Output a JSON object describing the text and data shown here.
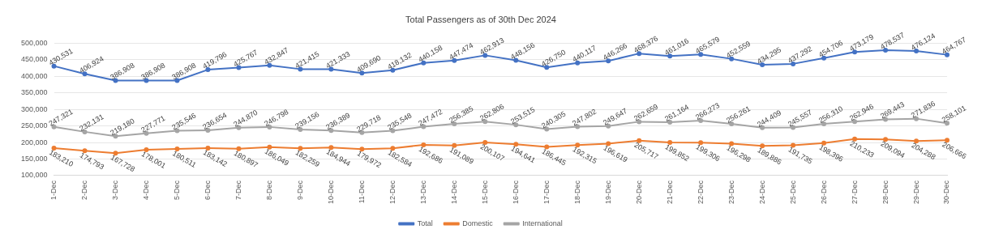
{
  "chart_data": {
    "type": "line",
    "title": "Total Passengers as of 30th Dec 2024",
    "categories": [
      "1-Dec",
      "2-Dec",
      "3-Dec",
      "4-Dec",
      "5-Dec",
      "6-Dec",
      "7-Dec",
      "8-Dec",
      "9-Dec",
      "10-Dec",
      "11-Dec",
      "12-Dec",
      "13-Dec",
      "14-Dec",
      "15-Dec",
      "16-Dec",
      "17-Dec",
      "18-Dec",
      "19-Dec",
      "20-Dec",
      "21-Dec",
      "22-Dec",
      "23-Dec",
      "24-Dec",
      "25-Dec",
      "26-Dec",
      "27-Dec",
      "28-Dec",
      "29-Dec",
      "30-Dec"
    ],
    "series": [
      {
        "name": "Total",
        "color": "#4472c4",
        "values": [
          430531,
          406924,
          386908,
          386908,
          386908,
          419796,
          425767,
          432847,
          421415,
          421333,
          409690,
          418132,
          440158,
          447474,
          462913,
          448156,
          426750,
          440117,
          446266,
          468376,
          461016,
          465579,
          452559,
          434295,
          437292,
          454706,
          473179,
          478537,
          476124,
          464767
        ],
        "value_labels": [
          "430,531",
          "406,924",
          "386,908",
          "386,908",
          "386,908",
          "419,796",
          "425,767",
          "432,847",
          "421,415",
          "421,333",
          "409,690",
          "418,132",
          "440,158",
          "447,474",
          "462,913",
          "448,156",
          "426,750",
          "440,117",
          "446,266",
          "468,376",
          "461,016",
          "465,579",
          "452,559",
          "434,295",
          "437,292",
          "454,706",
          "473,179",
          "478,537",
          "476,124",
          "464,767"
        ]
      },
      {
        "name": "Domestic",
        "color": "#ed7d31",
        "values": [
          183210,
          174793,
          167728,
          178001,
          180511,
          183142,
          180897,
          186049,
          182259,
          184944,
          179972,
          182584,
          192686,
          191089,
          200107,
          194641,
          186445,
          192315,
          196619,
          205717,
          199852,
          199306,
          196298,
          189886,
          191735,
          198396,
          210233,
          209094,
          204288,
          206666
        ],
        "value_labels": [
          "183,210",
          "174,793",
          "167,728",
          "178,001",
          "180,511",
          "183,142",
          "180,897",
          "186,049",
          "182,259",
          "184,944",
          "179,972",
          "182,584",
          "192,686",
          "191,089",
          "200,107",
          "194,641",
          "186,445",
          "192,315",
          "196,619",
          "205,717",
          "199,852",
          "199,306",
          "196,298",
          "189,886",
          "191,735",
          "198,396",
          "210,233",
          "209,094",
          "204,288",
          "206,666"
        ]
      },
      {
        "name": "International",
        "color": "#a5a5a5",
        "values": [
          247321,
          232131,
          219180,
          227771,
          235546,
          236654,
          244870,
          246798,
          239156,
          236389,
          229718,
          235548,
          247472,
          256385,
          262806,
          253515,
          240305,
          247802,
          249647,
          262659,
          261164,
          266273,
          256261,
          244409,
          245557,
          256310,
          262946,
          269443,
          271836,
          258101
        ],
        "value_labels": [
          "247,321",
          "232,131",
          "219,180",
          "227,771",
          "235,546",
          "236,654",
          "244,870",
          "246,798",
          "239,156",
          "236,389",
          "229,718",
          "235,548",
          "247,472",
          "256,385",
          "262,806",
          "253,515",
          "240,305",
          "247,802",
          "249,647",
          "262,659",
          "261,164",
          "266,273",
          "256,261",
          "244,409",
          "245,557",
          "256,310",
          "262,946",
          "269,443",
          "271,836",
          "258,101"
        ]
      }
    ],
    "ylim": [
      100000,
      500000
    ],
    "yticks": [
      {
        "value": 100000,
        "label": "100,000"
      },
      {
        "value": 150000,
        "label": "150,000"
      },
      {
        "value": 200000,
        "label": "200,000"
      },
      {
        "value": 250000,
        "label": "250,000"
      },
      {
        "value": 300000,
        "label": "300,000"
      },
      {
        "value": 350000,
        "label": "350,000"
      },
      {
        "value": 400000,
        "label": "400,000"
      },
      {
        "value": 450000,
        "label": "450,000"
      },
      {
        "value": 500000,
        "label": "500,000"
      }
    ],
    "grid": "y",
    "legend": "bottom",
    "marker": "circle",
    "line_style": "solid"
  }
}
